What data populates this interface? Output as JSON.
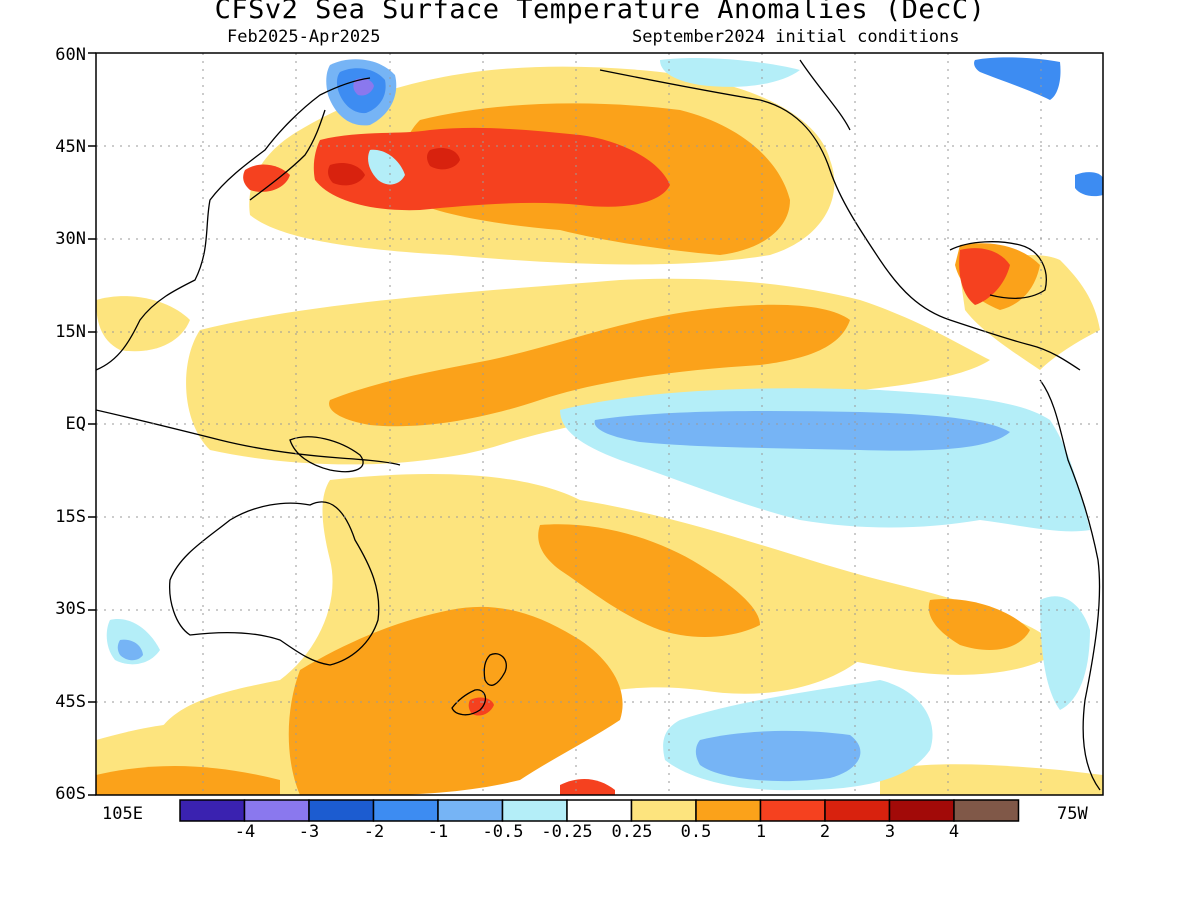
{
  "title": "CFSv2 Sea Surface Temperature Anomalies (DecC)",
  "subtitle_left": "Feb2025-Apr2025",
  "subtitle_right": "September2024 initial conditions",
  "lat_labels": [
    "60N",
    "45N",
    "30N",
    "15N",
    "EQ",
    "15S",
    "30S",
    "45S",
    "60S"
  ],
  "lon_labels": {
    "left": "105E",
    "right": "75W"
  },
  "colorbar": {
    "ticks": [
      "-4",
      "-3",
      "-2",
      "-1",
      "-0.5",
      "-0.25",
      "0.25",
      "0.5",
      "1",
      "2",
      "3",
      "4"
    ],
    "colors": [
      "#3a22b0",
      "#8a78ee",
      "#1c5cd0",
      "#3d8cf2",
      "#76b4f5",
      "#b4eef8",
      "#ffffff",
      "#fde47e",
      "#fba21a",
      "#f5411f",
      "#d8220e",
      "#a20a08",
      "#805848"
    ]
  },
  "chart_data": {
    "type": "heatmap",
    "title": "CFSv2 Sea Surface Temperature Anomalies (DecC)",
    "period": "Feb2025-Apr2025",
    "initial_conditions": "September2024 initial conditions",
    "lat_range": [
      "60S",
      "60N"
    ],
    "lon_range": [
      "105E",
      "75W"
    ],
    "levels": [
      -4,
      -3,
      -2,
      -1,
      -0.5,
      -0.25,
      0.25,
      0.5,
      1,
      2,
      3,
      4
    ]
  }
}
